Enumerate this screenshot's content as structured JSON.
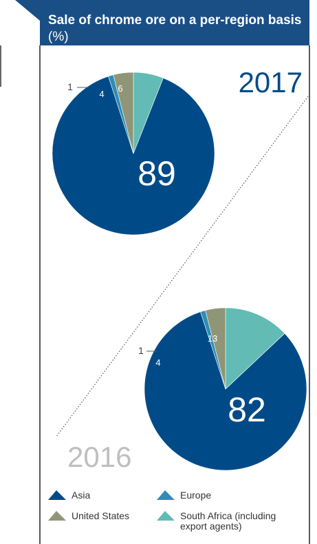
{
  "header": {
    "title": "Sale of chrome ore on a per-region basis",
    "unit": "(%)",
    "color": "#1a4f86"
  },
  "colors": {
    "asia": "#004b87",
    "europe": "#2e8cb5",
    "united_states": "#8f9677",
    "south_africa": "#62bbb5",
    "year_2017": "#004b87",
    "year_2016": "#bfbfbf"
  },
  "chart_data": [
    {
      "type": "pie",
      "year_label": "2017",
      "categories": [
        "Asia",
        "Europe",
        "United States",
        "South Africa (including export agents)"
      ],
      "values": [
        89,
        1,
        4,
        6
      ],
      "value_labels": [
        "89",
        "1",
        "4",
        "6"
      ]
    },
    {
      "type": "pie",
      "year_label": "2016",
      "categories": [
        "Asia",
        "Europe",
        "United States",
        "South Africa (including export agents)"
      ],
      "values": [
        82,
        1,
        4,
        13
      ],
      "value_labels": [
        "82",
        "1",
        "4",
        "13"
      ]
    }
  ],
  "legend": [
    {
      "label": "Asia",
      "color": "#004b87"
    },
    {
      "label": "Europe",
      "color": "#2e8cb5"
    },
    {
      "label": "United States",
      "color": "#8f9677"
    },
    {
      "label": "South Africa (including export agents)",
      "color": "#62bbb5"
    }
  ]
}
